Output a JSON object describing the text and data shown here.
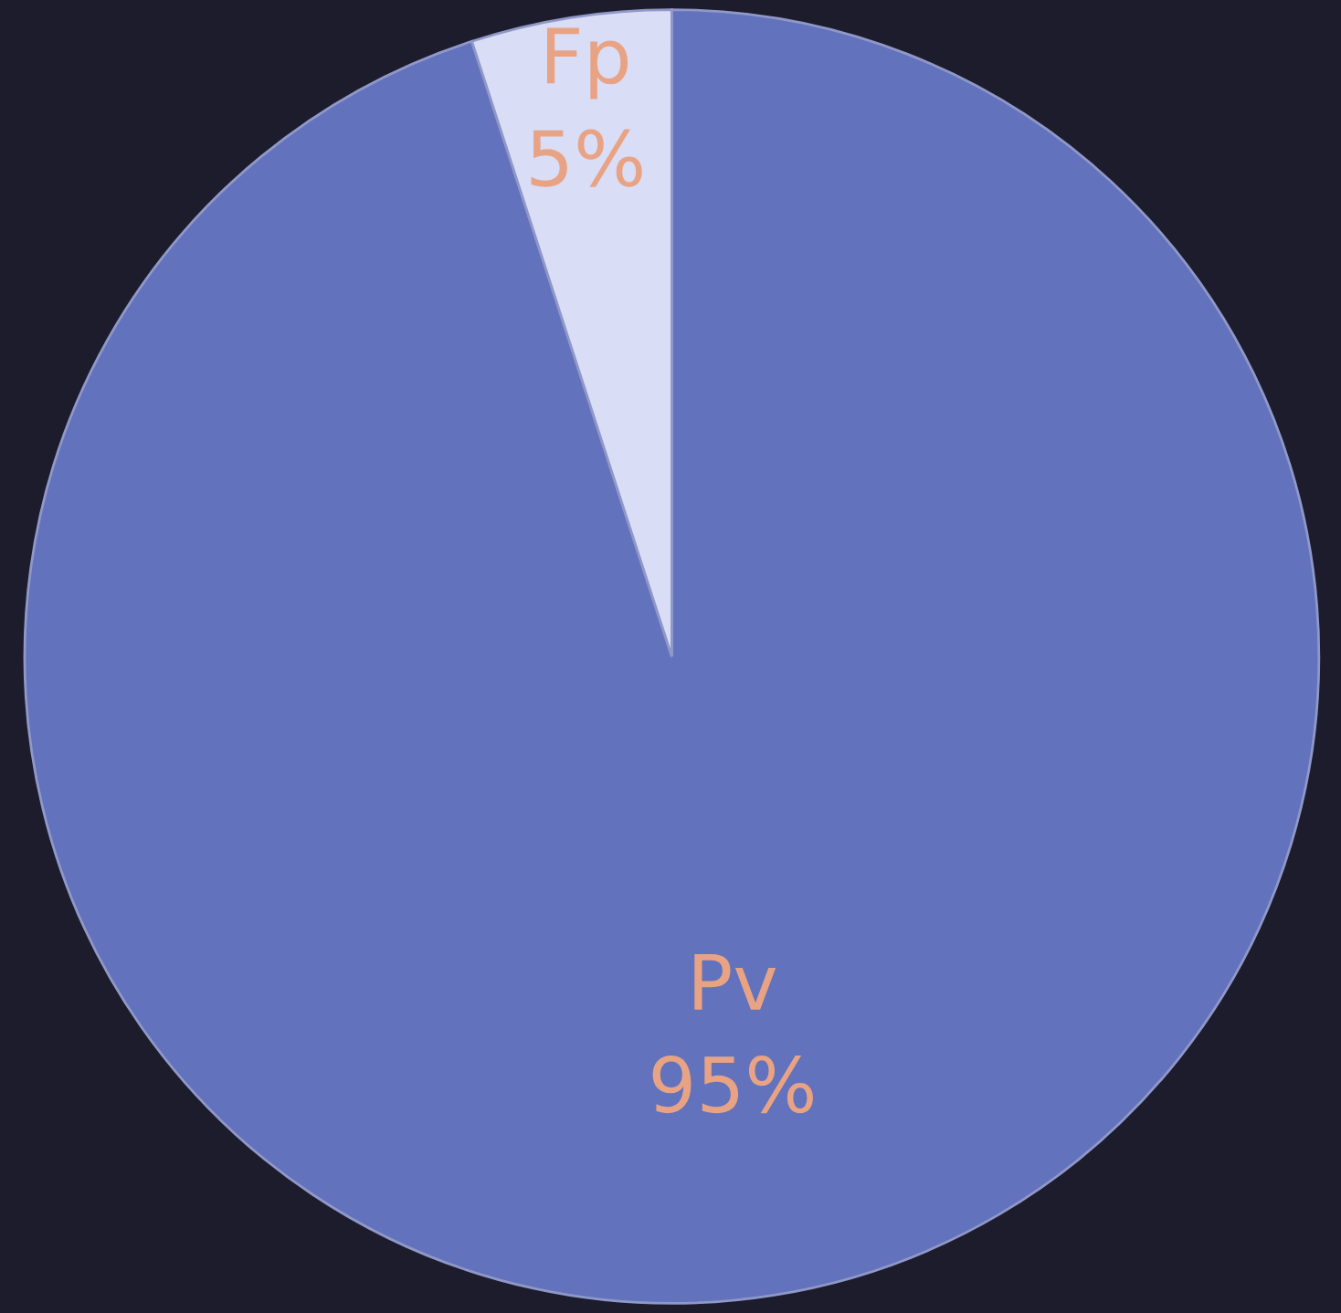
{
  "chart_data": {
    "type": "pie",
    "categories": [
      "Pv",
      "Fp"
    ],
    "values": [
      95,
      5
    ],
    "colors": [
      "#6272bc",
      "#d9ddf5"
    ],
    "value_labels": [
      "95%",
      "5%"
    ]
  }
}
